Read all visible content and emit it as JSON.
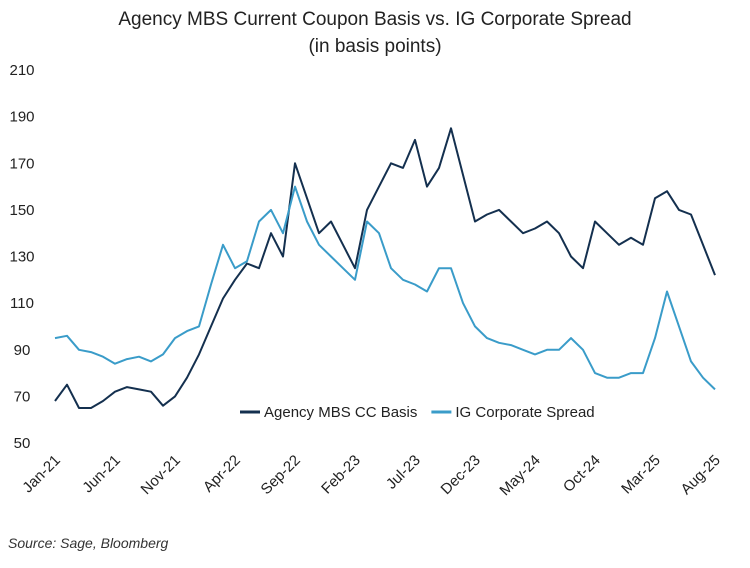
{
  "chart_data": {
    "type": "line",
    "title": "Agency MBS Current Coupon Basis vs. IG Corporate Spread",
    "subtitle": "(in basis points)",
    "source": "Source: Sage, Bloomberg",
    "x": [
      "2021-01",
      "2021-02",
      "2021-03",
      "2021-04",
      "2021-05",
      "2021-06",
      "2021-07",
      "2021-08",
      "2021-09",
      "2021-10",
      "2021-11",
      "2021-12",
      "2022-01",
      "2022-02",
      "2022-03",
      "2022-04",
      "2022-05",
      "2022-06",
      "2022-07",
      "2022-08",
      "2022-09",
      "2022-10",
      "2022-11",
      "2022-12",
      "2023-01",
      "2023-02",
      "2023-03",
      "2023-04",
      "2023-05",
      "2023-06",
      "2023-07",
      "2023-08",
      "2023-09",
      "2023-10",
      "2023-11",
      "2023-12",
      "2024-01",
      "2024-02",
      "2024-03",
      "2024-04",
      "2024-05",
      "2024-06",
      "2024-07",
      "2024-08",
      "2024-09",
      "2024-10",
      "2024-11",
      "2024-12",
      "2025-01",
      "2025-02",
      "2025-03",
      "2025-04",
      "2025-05",
      "2025-06",
      "2025-07",
      "2025-08"
    ],
    "xlim": [
      "2021-01",
      "2025-08"
    ],
    "xticks": [
      {
        "value": "2021-01",
        "label": "Jan-21"
      },
      {
        "value": "2021-06",
        "label": "Jun-21"
      },
      {
        "value": "2021-11",
        "label": "Nov-21"
      },
      {
        "value": "2022-04",
        "label": "Apr-22"
      },
      {
        "value": "2022-09",
        "label": "Sep-22"
      },
      {
        "value": "2023-02",
        "label": "Feb-23"
      },
      {
        "value": "2023-07",
        "label": "Jul-23"
      },
      {
        "value": "2023-12",
        "label": "Dec-23"
      },
      {
        "value": "2024-05",
        "label": "May-24"
      },
      {
        "value": "2024-10",
        "label": "Oct-24"
      },
      {
        "value": "2025-03",
        "label": "Mar-25"
      },
      {
        "value": "2025-08",
        "label": "Aug-25"
      }
    ],
    "ylim": [
      50,
      210
    ],
    "yticks": [
      50,
      70,
      90,
      110,
      130,
      150,
      170,
      190,
      210
    ],
    "grid": false,
    "legend": "bottom",
    "series": [
      {
        "name": "Agency MBS CC Basis",
        "color": "#14304f",
        "values": [
          68,
          75,
          65,
          65,
          68,
          72,
          74,
          73,
          72,
          66,
          70,
          78,
          88,
          100,
          112,
          120,
          127,
          125,
          140,
          130,
          170,
          155,
          140,
          145,
          135,
          125,
          150,
          160,
          170,
          168,
          180,
          160,
          168,
          185,
          165,
          145,
          148,
          150,
          145,
          140,
          142,
          145,
          140,
          130,
          125,
          145,
          140,
          135,
          138,
          135,
          155,
          158,
          150,
          148,
          135,
          122
        ]
      },
      {
        "name": "IG Corporate Spread",
        "color": "#3a9cc9",
        "values": [
          95,
          96,
          90,
          89,
          87,
          84,
          86,
          87,
          85,
          88,
          95,
          98,
          100,
          118,
          135,
          125,
          128,
          145,
          150,
          140,
          160,
          145,
          135,
          130,
          125,
          120,
          145,
          140,
          125,
          120,
          118,
          115,
          125,
          125,
          110,
          100,
          95,
          93,
          92,
          90,
          88,
          90,
          90,
          95,
          90,
          80,
          78,
          78,
          80,
          80,
          95,
          115,
          100,
          85,
          78,
          73
        ]
      }
    ]
  }
}
